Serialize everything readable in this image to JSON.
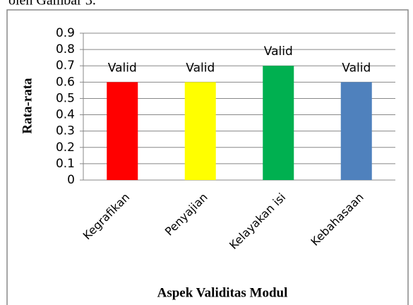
{
  "page_text": "oleh Gambar 3.",
  "chart_data": {
    "type": "bar",
    "categories": [
      "Kegrafikan",
      "Penyajian",
      "Kelayakan isi",
      "Kebahasaan"
    ],
    "values": [
      0.6,
      0.6,
      0.7,
      0.6
    ],
    "colors": [
      "#ff0000",
      "#ffff00",
      "#00b050",
      "#4f81bd"
    ],
    "annotations": [
      "Valid",
      "Valid",
      "Valid",
      "Valid"
    ],
    "ylabel": "Rata-rata",
    "xlabel": "Aspek Validitas Modul",
    "ylim": [
      0,
      0.9
    ],
    "yticks": [
      0,
      0.1,
      0.2,
      0.3,
      0.4,
      0.5,
      0.6,
      0.7,
      0.8,
      0.9
    ],
    "grid": true
  }
}
